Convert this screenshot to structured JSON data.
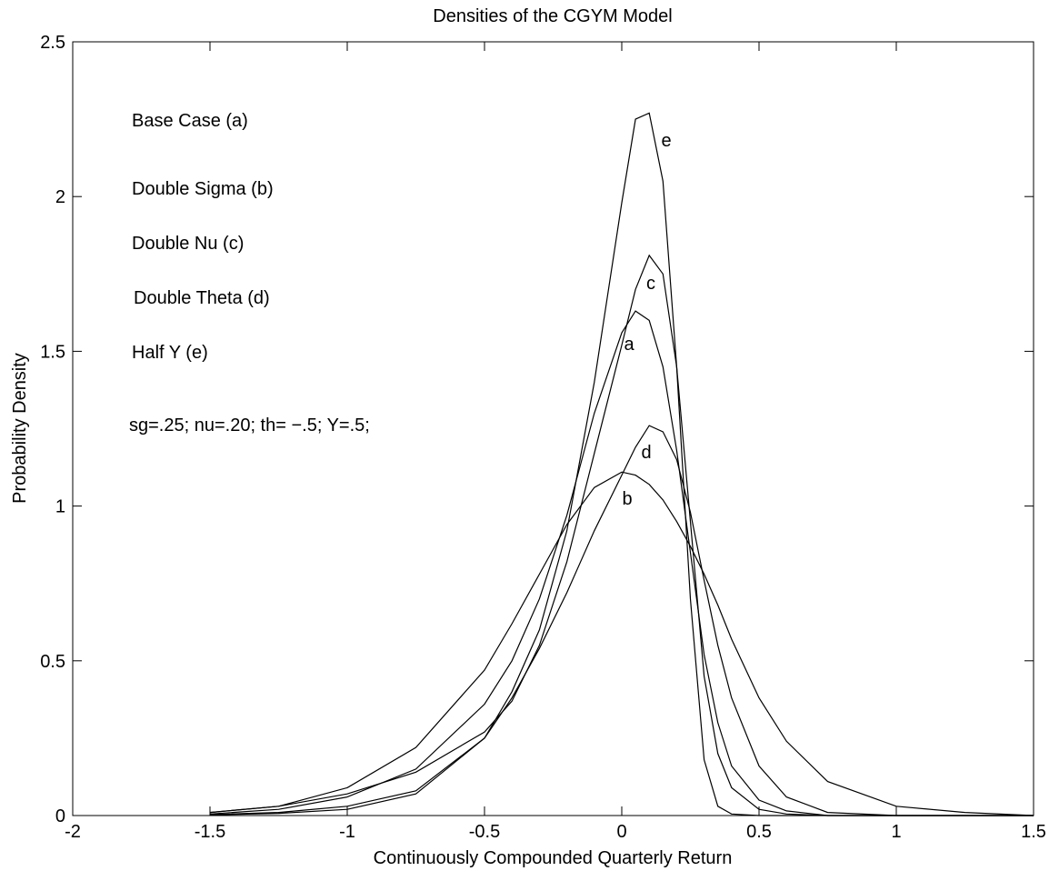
{
  "chart_data": {
    "type": "line",
    "title": "Densities of the CGYM Model",
    "x_label": "Continuously Compounded Quarterly Return",
    "y_label": "Probability Density",
    "annotations": [
      "Base Case (a)",
      "Double Sigma (b)",
      "Double Nu (c)",
      "Double Theta (d)",
      "Half Y (e)",
      "sg=.25; nu=.20; th= −.5; Y=.5;"
    ],
    "x": [
      -1.5,
      -1.25,
      -1.0,
      -0.75,
      -0.5,
      -0.4,
      -0.3,
      -0.2,
      -0.1,
      0,
      0.05,
      0.1,
      0.15,
      0.2,
      0.25,
      0.3,
      0.35,
      0.4,
      0.5,
      0.6,
      0.75,
      1.0,
      1.25,
      1.5
    ],
    "series": [
      {
        "name": "a",
        "color": "#000000",
        "values": [
          0.005,
          0.02,
          0.06,
          0.15,
          0.36,
          0.5,
          0.7,
          0.97,
          1.3,
          1.56,
          1.63,
          1.6,
          1.45,
          1.18,
          0.85,
          0.52,
          0.3,
          0.16,
          0.05,
          0.015,
          0,
          0,
          0,
          0
        ]
      },
      {
        "name": "b",
        "color": "#000000",
        "values": [
          0.01,
          0.03,
          0.09,
          0.22,
          0.47,
          0.62,
          0.78,
          0.94,
          1.06,
          1.11,
          1.1,
          1.07,
          1.02,
          0.95,
          0.87,
          0.78,
          0.68,
          0.57,
          0.38,
          0.24,
          0.11,
          0.03,
          0.01,
          0
        ]
      },
      {
        "name": "c",
        "color": "#000000",
        "values": [
          0.01,
          0.03,
          0.07,
          0.14,
          0.27,
          0.37,
          0.55,
          0.82,
          1.17,
          1.52,
          1.7,
          1.81,
          1.75,
          1.45,
          0.95,
          0.45,
          0.2,
          0.09,
          0.02,
          0.005,
          0,
          0,
          0,
          0
        ]
      },
      {
        "name": "d",
        "color": "#000000",
        "values": [
          0.003,
          0.01,
          0.03,
          0.08,
          0.25,
          0.38,
          0.54,
          0.72,
          0.92,
          1.1,
          1.19,
          1.26,
          1.24,
          1.15,
          0.98,
          0.76,
          0.55,
          0.38,
          0.16,
          0.06,
          0.01,
          0,
          0,
          0
        ]
      },
      {
        "name": "e",
        "color": "#000000",
        "values": [
          0.002,
          0.007,
          0.02,
          0.07,
          0.25,
          0.4,
          0.6,
          0.92,
          1.4,
          1.98,
          2.25,
          2.27,
          2.05,
          1.45,
          0.7,
          0.18,
          0.03,
          0.005,
          0,
          0,
          0,
          0,
          0,
          0
        ]
      }
    ],
    "xlim": [
      -2,
      1.5
    ],
    "xticks": [
      -2,
      -1.5,
      -1,
      -0.5,
      0,
      0.5,
      1,
      1.5
    ],
    "ylim": [
      0,
      2.5
    ],
    "yticks": [
      0,
      0.5,
      1,
      1.5,
      2,
      2.5
    ]
  }
}
